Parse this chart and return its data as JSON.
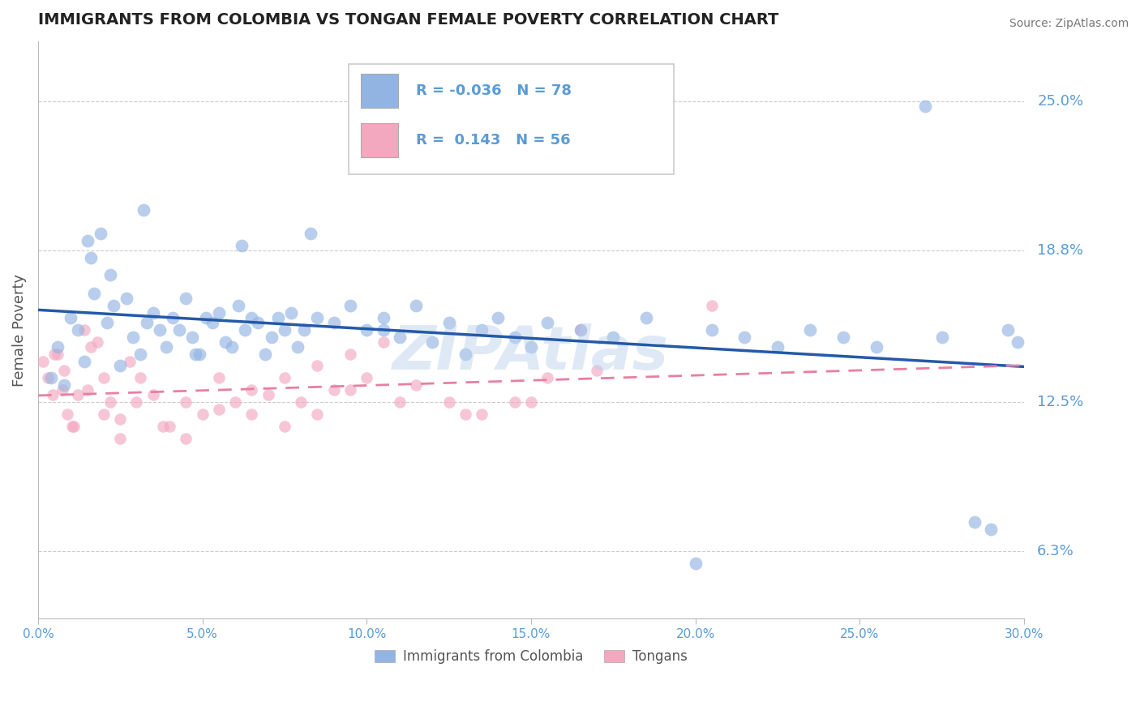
{
  "title": "IMMIGRANTS FROM COLOMBIA VS TONGAN FEMALE POVERTY CORRELATION CHART",
  "source_text": "Source: ZipAtlas.com",
  "ylabel": "Female Poverty",
  "xlabel_ticks": [
    "0.0%",
    "5.0%",
    "10.0%",
    "15.0%",
    "20.0%",
    "25.0%",
    "30.0%"
  ],
  "xlabel_vals": [
    0.0,
    5.0,
    10.0,
    15.0,
    20.0,
    25.0,
    30.0
  ],
  "ytick_labels": [
    "6.3%",
    "12.5%",
    "18.8%",
    "25.0%"
  ],
  "ytick_vals": [
    6.3,
    12.5,
    18.8,
    25.0
  ],
  "xmin": 0.0,
  "xmax": 30.0,
  "ymin": 3.5,
  "ymax": 27.5,
  "colombia_R": -0.036,
  "colombia_N": 78,
  "tongan_R": 0.143,
  "tongan_N": 56,
  "colombia_color": "#92b4e3",
  "tongan_color": "#f4a8c0",
  "colombia_line_color": "#2459a8",
  "tongan_line_color": "#e87fa0",
  "watermark": "ZIPAtlas",
  "watermark_color": "#b8d0ec",
  "title_color": "#222222",
  "tick_label_color": "#5b9bd5",
  "grid_color": "#cccccc",
  "background_color": "#ffffff",
  "colombia_x": [
    0.4,
    0.6,
    0.8,
    1.0,
    1.2,
    1.4,
    1.6,
    1.7,
    1.9,
    2.1,
    2.3,
    2.5,
    2.7,
    2.9,
    3.1,
    3.3,
    3.5,
    3.7,
    3.9,
    4.1,
    4.3,
    4.5,
    4.7,
    4.9,
    5.1,
    5.3,
    5.5,
    5.7,
    5.9,
    6.1,
    6.3,
    6.5,
    6.7,
    6.9,
    7.1,
    7.3,
    7.5,
    7.7,
    7.9,
    8.1,
    8.5,
    9.0,
    9.5,
    10.0,
    10.5,
    11.0,
    11.5,
    12.0,
    12.5,
    13.0,
    13.5,
    14.0,
    14.5,
    15.5,
    16.5,
    17.5,
    18.5,
    20.5,
    21.5,
    22.5,
    23.5,
    24.5,
    25.5,
    27.5,
    28.5,
    29.5,
    29.8,
    20.0,
    15.0,
    10.5,
    8.3,
    6.2,
    4.8,
    3.2,
    2.2,
    1.5,
    29.0,
    27.0
  ],
  "colombia_y": [
    13.5,
    14.8,
    13.2,
    16.0,
    15.5,
    14.2,
    18.5,
    17.0,
    19.5,
    15.8,
    16.5,
    14.0,
    16.8,
    15.2,
    14.5,
    15.8,
    16.2,
    15.5,
    14.8,
    16.0,
    15.5,
    16.8,
    15.2,
    14.5,
    16.0,
    15.8,
    16.2,
    15.0,
    14.8,
    16.5,
    15.5,
    16.0,
    15.8,
    14.5,
    15.2,
    16.0,
    15.5,
    16.2,
    14.8,
    15.5,
    16.0,
    15.8,
    16.5,
    15.5,
    16.0,
    15.2,
    16.5,
    15.0,
    15.8,
    14.5,
    15.5,
    16.0,
    15.2,
    15.8,
    15.5,
    15.2,
    16.0,
    15.5,
    15.2,
    14.8,
    15.5,
    15.2,
    14.8,
    15.2,
    7.5,
    15.5,
    15.0,
    5.8,
    14.8,
    15.5,
    19.5,
    19.0,
    14.5,
    20.5,
    17.8,
    19.2,
    7.2,
    24.8
  ],
  "tongan_x": [
    0.15,
    0.3,
    0.45,
    0.6,
    0.75,
    0.9,
    1.05,
    1.2,
    1.4,
    1.6,
    1.8,
    2.0,
    2.2,
    2.5,
    2.8,
    3.1,
    3.5,
    4.0,
    4.5,
    5.0,
    5.5,
    6.0,
    6.5,
    7.0,
    7.5,
    8.0,
    8.5,
    9.0,
    9.5,
    10.0,
    10.5,
    11.5,
    12.5,
    13.5,
    14.5,
    15.5,
    16.5,
    0.5,
    0.8,
    1.1,
    1.5,
    2.0,
    2.5,
    3.0,
    3.8,
    4.5,
    5.5,
    6.5,
    7.5,
    8.5,
    9.5,
    11.0,
    13.0,
    15.0,
    17.0,
    20.5
  ],
  "tongan_y": [
    14.2,
    13.5,
    12.8,
    14.5,
    13.0,
    12.0,
    11.5,
    12.8,
    15.5,
    14.8,
    15.0,
    13.5,
    12.5,
    11.8,
    14.2,
    13.5,
    12.8,
    11.5,
    12.5,
    12.0,
    13.5,
    12.5,
    13.0,
    12.8,
    13.5,
    12.5,
    14.0,
    13.0,
    14.5,
    13.5,
    15.0,
    13.2,
    12.5,
    12.0,
    12.5,
    13.5,
    15.5,
    14.5,
    13.8,
    11.5,
    13.0,
    12.0,
    11.0,
    12.5,
    11.5,
    11.0,
    12.2,
    12.0,
    11.5,
    12.0,
    13.0,
    12.5,
    12.0,
    12.5,
    13.8,
    16.5
  ],
  "colombia_marker_size": 130,
  "tongan_marker_size": 110
}
